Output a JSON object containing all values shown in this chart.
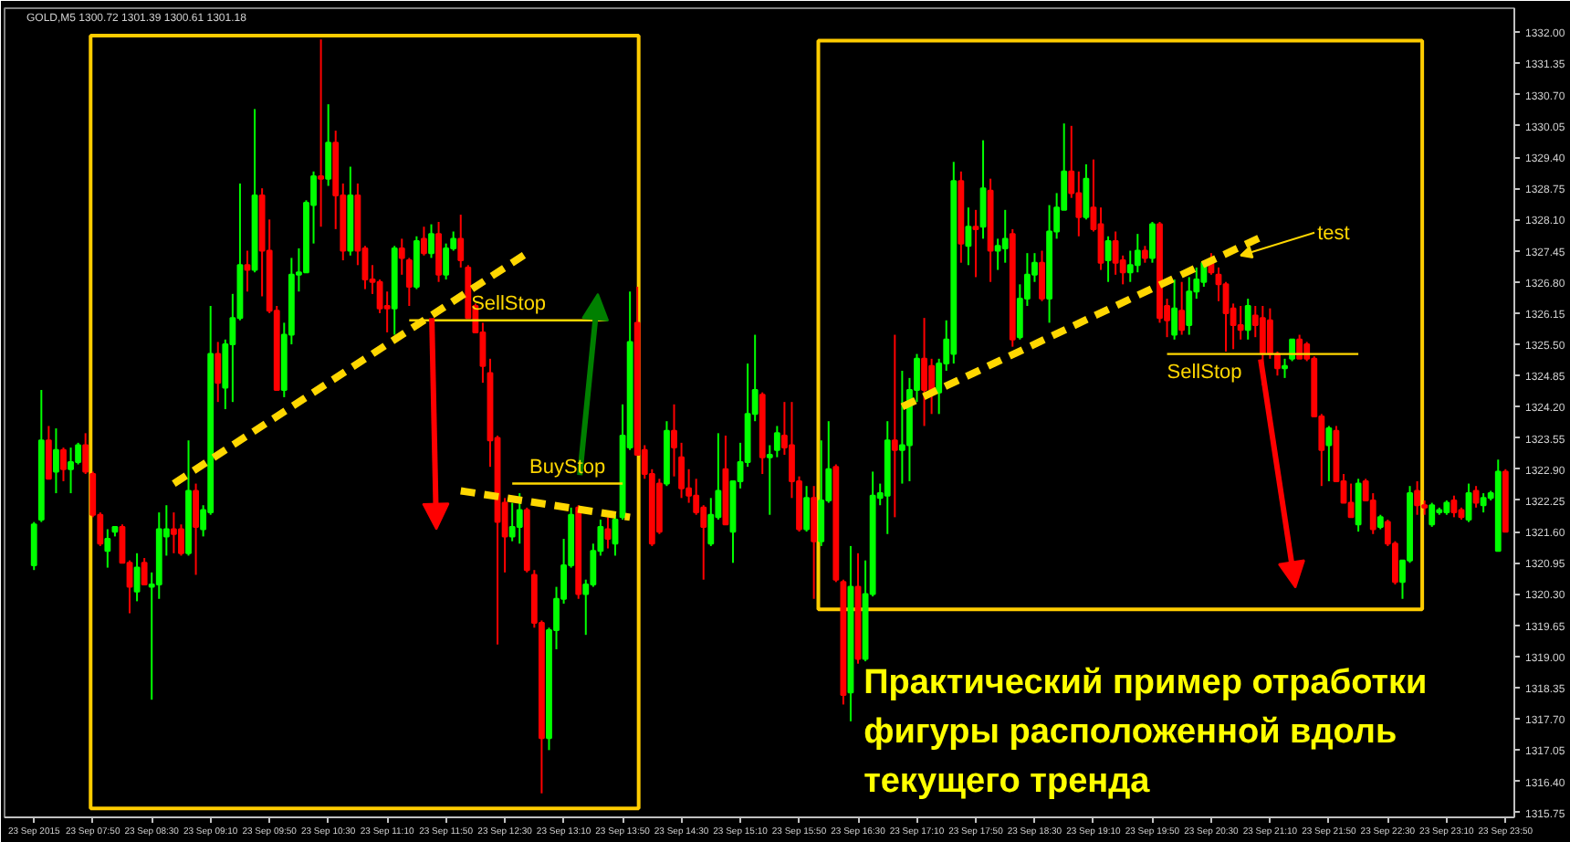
{
  "chart_data": {
    "type": "candlestick",
    "title": "GOLD,M5  1300.72 1301.39 1300.61 1301.18",
    "x": [
      "2015-09-23T07:10",
      "2015-09-23T07:15",
      "2015-09-23T07:20",
      "2015-09-23T07:25",
      "2015-09-23T07:30",
      "2015-09-23T07:35",
      "2015-09-23T07:40",
      "2015-09-23T07:45",
      "2015-09-23T07:50",
      "2015-09-23T07:55",
      "2015-09-23T08:00",
      "2015-09-23T08:05",
      "2015-09-23T08:10",
      "2015-09-23T08:15",
      "2015-09-23T08:20",
      "2015-09-23T08:25",
      "2015-09-23T08:30",
      "2015-09-23T08:35",
      "2015-09-23T08:40",
      "2015-09-23T08:45",
      "2015-09-23T08:50",
      "2015-09-23T08:55",
      "2015-09-23T09:00",
      "2015-09-23T09:05",
      "2015-09-23T09:10",
      "2015-09-23T09:15",
      "2015-09-23T09:20",
      "2015-09-23T09:25",
      "2015-09-23T09:30",
      "2015-09-23T09:35",
      "2015-09-23T09:40",
      "2015-09-23T09:45",
      "2015-09-23T09:50",
      "2015-09-23T09:55",
      "2015-09-23T10:00",
      "2015-09-23T10:05",
      "2015-09-23T10:10",
      "2015-09-23T10:15",
      "2015-09-23T10:20",
      "2015-09-23T10:25",
      "2015-09-23T10:30",
      "2015-09-23T10:35",
      "2015-09-23T10:40",
      "2015-09-23T10:45",
      "2015-09-23T10:50",
      "2015-09-23T10:55",
      "2015-09-23T11:00",
      "2015-09-23T11:05",
      "2015-09-23T11:10",
      "2015-09-23T11:15",
      "2015-09-23T11:20",
      "2015-09-23T11:25",
      "2015-09-23T11:30",
      "2015-09-23T11:35",
      "2015-09-23T11:40",
      "2015-09-23T11:45",
      "2015-09-23T11:50",
      "2015-09-23T11:55",
      "2015-09-23T12:00",
      "2015-09-23T12:05",
      "2015-09-23T12:10",
      "2015-09-23T12:15",
      "2015-09-23T12:20",
      "2015-09-23T12:25",
      "2015-09-23T12:30",
      "2015-09-23T12:35",
      "2015-09-23T12:40",
      "2015-09-23T12:45",
      "2015-09-23T12:50",
      "2015-09-23T12:55",
      "2015-09-23T13:00",
      "2015-09-23T13:05",
      "2015-09-23T13:10",
      "2015-09-23T13:15",
      "2015-09-23T13:20",
      "2015-09-23T13:25",
      "2015-09-23T13:30",
      "2015-09-23T13:35",
      "2015-09-23T13:40",
      "2015-09-23T13:45",
      "2015-09-23T13:50",
      "2015-09-23T13:55",
      "2015-09-23T14:00",
      "2015-09-23T14:05",
      "2015-09-23T14:10",
      "2015-09-23T14:15",
      "2015-09-23T14:20",
      "2015-09-23T14:25",
      "2015-09-23T14:30",
      "2015-09-23T14:35",
      "2015-09-23T14:40",
      "2015-09-23T14:45",
      "2015-09-23T14:50",
      "2015-09-23T14:55",
      "2015-09-23T15:00",
      "2015-09-23T15:05",
      "2015-09-23T15:10",
      "2015-09-23T15:15",
      "2015-09-23T15:20",
      "2015-09-23T15:25",
      "2015-09-23T15:30",
      "2015-09-23T15:35",
      "2015-09-23T15:40",
      "2015-09-23T15:45",
      "2015-09-23T15:50",
      "2015-09-23T15:55",
      "2015-09-23T16:00",
      "2015-09-23T16:05",
      "2015-09-23T16:10",
      "2015-09-23T16:15",
      "2015-09-23T16:20",
      "2015-09-23T16:25",
      "2015-09-23T16:30",
      "2015-09-23T16:35",
      "2015-09-23T16:40",
      "2015-09-23T16:45",
      "2015-09-23T16:50",
      "2015-09-23T16:55",
      "2015-09-23T17:00",
      "2015-09-23T17:05",
      "2015-09-23T17:10",
      "2015-09-23T17:15",
      "2015-09-23T17:20",
      "2015-09-23T17:25",
      "2015-09-23T17:30",
      "2015-09-23T17:35",
      "2015-09-23T17:40",
      "2015-09-23T17:45",
      "2015-09-23T17:50",
      "2015-09-23T17:55",
      "2015-09-23T18:00",
      "2015-09-23T18:05",
      "2015-09-23T18:10",
      "2015-09-23T18:15",
      "2015-09-23T18:20",
      "2015-09-23T18:25",
      "2015-09-23T18:30",
      "2015-09-23T18:35",
      "2015-09-23T18:40",
      "2015-09-23T18:45",
      "2015-09-23T18:50",
      "2015-09-23T18:55",
      "2015-09-23T19:00",
      "2015-09-23T19:05",
      "2015-09-23T19:10",
      "2015-09-23T19:15",
      "2015-09-23T19:20",
      "2015-09-23T19:25",
      "2015-09-23T19:30",
      "2015-09-23T19:35",
      "2015-09-23T19:40",
      "2015-09-23T19:45",
      "2015-09-23T19:50",
      "2015-09-23T19:55",
      "2015-09-23T20:00",
      "2015-09-23T20:05",
      "2015-09-23T20:10",
      "2015-09-23T20:15",
      "2015-09-23T20:20",
      "2015-09-23T20:25",
      "2015-09-23T20:30",
      "2015-09-23T20:35",
      "2015-09-23T20:40",
      "2015-09-23T20:45",
      "2015-09-23T20:50",
      "2015-09-23T20:55",
      "2015-09-23T21:00",
      "2015-09-23T21:05",
      "2015-09-23T21:10",
      "2015-09-23T21:15",
      "2015-09-23T21:20",
      "2015-09-23T21:25",
      "2015-09-23T21:30",
      "2015-09-23T21:35",
      "2015-09-23T21:40",
      "2015-09-23T21:45",
      "2015-09-23T21:50",
      "2015-09-23T21:55",
      "2015-09-23T22:00",
      "2015-09-23T22:05",
      "2015-09-23T22:10",
      "2015-09-23T22:15",
      "2015-09-23T22:20",
      "2015-09-23T22:25",
      "2015-09-23T22:30",
      "2015-09-23T22:35",
      "2015-09-23T22:40",
      "2015-09-23T22:45",
      "2015-09-23T22:50",
      "2015-09-23T22:55",
      "2015-09-23T23:00",
      "2015-09-23T23:05",
      "2015-09-23T23:10",
      "2015-09-23T23:15",
      "2015-09-23T23:20",
      "2015-09-23T23:25",
      "2015-09-23T23:30",
      "2015-09-23T23:35",
      "2015-09-23T23:40",
      "2015-09-23T23:45",
      "2015-09-23T23:50"
    ],
    "ohlc": [
      [
        1320.9,
        1321.8,
        1320.8,
        1321.75
      ],
      [
        1321.85,
        1324.55,
        1321.8,
        1323.5
      ],
      [
        1323.5,
        1323.8,
        1322.7,
        1322.7
      ],
      [
        1322.85,
        1323.75,
        1322.4,
        1323.3
      ],
      [
        1323.3,
        1323.35,
        1322.65,
        1322.9
      ],
      [
        1322.9,
        1323.35,
        1322.4,
        1323.05
      ],
      [
        1323.05,
        1323.45,
        1323.0,
        1323.4
      ],
      [
        1323.4,
        1323.65,
        1322.8,
        1322.85
      ],
      [
        1322.8,
        1322.85,
        1321.9,
        1321.95
      ],
      [
        1321.95,
        1322.0,
        1321.3,
        1321.35
      ],
      [
        1321.2,
        1321.65,
        1320.85,
        1321.45
      ],
      [
        1321.6,
        1321.7,
        1321.5,
        1321.7
      ],
      [
        1321.7,
        1321.75,
        1320.95,
        1320.95
      ],
      [
        1320.95,
        1321.0,
        1319.9,
        1320.45
      ],
      [
        1320.35,
        1321.15,
        1320.15,
        1320.85
      ],
      [
        1320.95,
        1321.05,
        1320.5,
        1320.5
      ],
      [
        1320.45,
        1320.75,
        1318.1,
        1320.5
      ],
      [
        1320.5,
        1322.0,
        1320.2,
        1321.65
      ],
      [
        1321.5,
        1322.15,
        1321.1,
        1321.65
      ],
      [
        1321.65,
        1322.0,
        1321.15,
        1321.55
      ],
      [
        1321.65,
        1321.75,
        1321.1,
        1321.15
      ],
      [
        1321.15,
        1323.5,
        1321.1,
        1322.45
      ],
      [
        1322.45,
        1322.6,
        1320.7,
        1321.7
      ],
      [
        1321.65,
        1322.15,
        1321.5,
        1322.05
      ],
      [
        1322.0,
        1326.3,
        1321.95,
        1325.3
      ],
      [
        1325.3,
        1325.55,
        1324.3,
        1324.7
      ],
      [
        1324.6,
        1325.6,
        1324.15,
        1325.5
      ],
      [
        1325.5,
        1326.55,
        1324.3,
        1326.05
      ],
      [
        1326.05,
        1328.85,
        1326.0,
        1327.15
      ],
      [
        1327.15,
        1327.45,
        1326.6,
        1327.05
      ],
      [
        1327.05,
        1330.4,
        1327.0,
        1328.6
      ],
      [
        1328.6,
        1328.75,
        1326.5,
        1327.45
      ],
      [
        1327.45,
        1328.1,
        1326.15,
        1326.2
      ],
      [
        1326.2,
        1326.3,
        1324.55,
        1324.55
      ],
      [
        1324.55,
        1325.95,
        1324.4,
        1325.7
      ],
      [
        1325.7,
        1327.3,
        1325.5,
        1326.95
      ],
      [
        1326.95,
        1327.5,
        1326.6,
        1327.0
      ],
      [
        1327.0,
        1328.5,
        1327.0,
        1328.45
      ],
      [
        1328.4,
        1329.1,
        1327.6,
        1329.0
      ],
      [
        1329.0,
        1331.85,
        1327.95,
        1328.95
      ],
      [
        1328.95,
        1330.5,
        1328.8,
        1329.7
      ],
      [
        1329.7,
        1329.95,
        1327.9,
        1328.6
      ],
      [
        1328.6,
        1328.85,
        1327.25,
        1327.45
      ],
      [
        1327.45,
        1329.2,
        1327.35,
        1328.6
      ],
      [
        1328.6,
        1328.85,
        1327.15,
        1327.45
      ],
      [
        1327.5,
        1327.55,
        1326.65,
        1326.85
      ],
      [
        1326.85,
        1327.15,
        1326.55,
        1326.8
      ],
      [
        1326.8,
        1326.85,
        1326.15,
        1326.25
      ],
      [
        1326.3,
        1326.6,
        1325.75,
        1326.25
      ],
      [
        1326.25,
        1327.55,
        1325.7,
        1327.5
      ],
      [
        1327.5,
        1327.7,
        1326.95,
        1327.3
      ],
      [
        1327.25,
        1327.3,
        1326.3,
        1326.7
      ],
      [
        1326.7,
        1327.75,
        1326.65,
        1327.65
      ],
      [
        1327.7,
        1327.95,
        1327.35,
        1327.4
      ],
      [
        1327.4,
        1328.0,
        1327.3,
        1327.8
      ],
      [
        1327.8,
        1328.05,
        1326.8,
        1326.95
      ],
      [
        1326.95,
        1327.6,
        1326.85,
        1327.5
      ],
      [
        1327.5,
        1327.85,
        1327.45,
        1327.7
      ],
      [
        1327.7,
        1328.2,
        1327.1,
        1327.25
      ],
      [
        1327.1,
        1327.15,
        1326.05,
        1326.05
      ],
      [
        1326.3,
        1326.35,
        1325.75,
        1325.75
      ],
      [
        1325.75,
        1325.95,
        1324.7,
        1325.05
      ],
      [
        1324.9,
        1325.2,
        1322.95,
        1323.5
      ],
      [
        1323.55,
        1323.6,
        1319.25,
        1321.8
      ],
      [
        1322.2,
        1322.3,
        1320.75,
        1321.5
      ],
      [
        1321.5,
        1322.2,
        1321.4,
        1321.7
      ],
      [
        1321.7,
        1322.4,
        1321.35,
        1322.05
      ],
      [
        1322.05,
        1322.1,
        1320.75,
        1320.8
      ],
      [
        1320.7,
        1320.8,
        1319.6,
        1319.7
      ],
      [
        1319.7,
        1319.75,
        1316.15,
        1317.3
      ],
      [
        1317.3,
        1319.6,
        1317.05,
        1319.55
      ],
      [
        1319.55,
        1320.45,
        1319.15,
        1320.2
      ],
      [
        1320.2,
        1321.45,
        1320.1,
        1320.9
      ],
      [
        1320.9,
        1322.1,
        1320.85,
        1321.95
      ],
      [
        1322.1,
        1322.15,
        1320.2,
        1320.3
      ],
      [
        1320.3,
        1320.6,
        1319.45,
        1320.5
      ],
      [
        1320.5,
        1321.35,
        1320.45,
        1321.2
      ],
      [
        1321.2,
        1321.85,
        1321.1,
        1321.7
      ],
      [
        1321.65,
        1321.9,
        1321.25,
        1321.45
      ],
      [
        1321.35,
        1321.95,
        1321.1,
        1321.85
      ],
      [
        1321.9,
        1324.25,
        1321.85,
        1323.6
      ],
      [
        1323.35,
        1326.6,
        1323.3,
        1325.55
      ],
      [
        1325.95,
        1326.7,
        1323.2,
        1323.2
      ],
      [
        1323.3,
        1323.4,
        1322.7,
        1322.8
      ],
      [
        1322.8,
        1322.9,
        1321.3,
        1321.35
      ],
      [
        1322.6,
        1322.7,
        1321.55,
        1321.6
      ],
      [
        1322.6,
        1323.9,
        1322.55,
        1323.7
      ],
      [
        1323.7,
        1324.25,
        1322.75,
        1323.35
      ],
      [
        1323.15,
        1323.45,
        1322.3,
        1322.5
      ],
      [
        1322.5,
        1322.9,
        1322.2,
        1322.35
      ],
      [
        1322.35,
        1322.7,
        1321.95,
        1322.0
      ],
      [
        1322.1,
        1322.15,
        1320.6,
        1321.7
      ],
      [
        1321.35,
        1322.3,
        1321.3,
        1321.95
      ],
      [
        1321.9,
        1323.65,
        1321.85,
        1322.45
      ],
      [
        1322.9,
        1323.6,
        1321.75,
        1321.75
      ],
      [
        1321.6,
        1322.65,
        1320.95,
        1322.65
      ],
      [
        1322.65,
        1323.45,
        1322.5,
        1323.05
      ],
      [
        1323.05,
        1325.1,
        1322.95,
        1324.05
      ],
      [
        1324.05,
        1325.7,
        1323.9,
        1324.55
      ],
      [
        1324.45,
        1324.5,
        1322.8,
        1323.15
      ],
      [
        1323.15,
        1323.4,
        1321.95,
        1323.2
      ],
      [
        1323.3,
        1323.8,
        1323.15,
        1323.65
      ],
      [
        1323.6,
        1324.3,
        1323.2,
        1323.35
      ],
      [
        1323.4,
        1324.3,
        1322.3,
        1322.65
      ],
      [
        1322.65,
        1322.75,
        1321.6,
        1321.65
      ],
      [
        1321.65,
        1322.55,
        1321.6,
        1322.3
      ],
      [
        1322.3,
        1322.55,
        1320.2,
        1321.4
      ],
      [
        1321.4,
        1323.5,
        1321.3,
        1322.25
      ],
      [
        1322.25,
        1323.9,
        1322.2,
        1322.9
      ],
      [
        1322.95,
        1323.0,
        1320.55,
        1320.6
      ],
      [
        1320.55,
        1320.6,
        1318.0,
        1318.2
      ],
      [
        1318.25,
        1321.3,
        1317.65,
        1320.45
      ],
      [
        1320.45,
        1321.15,
        1318.85,
        1318.95
      ],
      [
        1318.95,
        1321.0,
        1318.9,
        1320.3
      ],
      [
        1320.3,
        1322.85,
        1320.25,
        1322.35
      ],
      [
        1322.3,
        1322.6,
        1322.15,
        1322.4
      ],
      [
        1322.35,
        1323.9,
        1321.55,
        1323.5
      ],
      [
        1323.5,
        1325.7,
        1321.9,
        1323.3
      ],
      [
        1323.3,
        1324.95,
        1322.6,
        1323.4
      ],
      [
        1323.4,
        1324.8,
        1322.65,
        1324.55
      ],
      [
        1324.55,
        1325.3,
        1324.3,
        1325.2
      ],
      [
        1325.2,
        1326.05,
        1323.8,
        1324.55
      ],
      [
        1325.05,
        1325.2,
        1324.05,
        1324.55
      ],
      [
        1324.5,
        1325.2,
        1324.05,
        1325.1
      ],
      [
        1325.1,
        1326.0,
        1324.95,
        1325.6
      ],
      [
        1325.3,
        1329.3,
        1325.1,
        1328.9
      ],
      [
        1328.9,
        1329.1,
        1327.2,
        1327.6
      ],
      [
        1327.55,
        1328.35,
        1327.15,
        1327.95
      ],
      [
        1327.95,
        1328.3,
        1326.9,
        1327.9
      ],
      [
        1327.95,
        1329.75,
        1327.7,
        1328.75
      ],
      [
        1328.7,
        1328.95,
        1326.8,
        1327.45
      ],
      [
        1327.45,
        1327.7,
        1327.05,
        1327.55
      ],
      [
        1327.5,
        1328.3,
        1327.2,
        1327.7
      ],
      [
        1327.8,
        1327.9,
        1325.45,
        1325.6
      ],
      [
        1325.65,
        1326.75,
        1325.6,
        1326.45
      ],
      [
        1326.45,
        1327.4,
        1326.3,
        1326.95
      ],
      [
        1326.95,
        1327.4,
        1326.8,
        1327.2
      ],
      [
        1327.2,
        1327.45,
        1326.4,
        1326.45
      ],
      [
        1326.45,
        1328.4,
        1325.95,
        1327.85
      ],
      [
        1327.85,
        1328.65,
        1327.7,
        1328.35
      ],
      [
        1328.3,
        1330.1,
        1328.3,
        1329.1
      ],
      [
        1329.1,
        1330.05,
        1328.55,
        1328.65
      ],
      [
        1328.65,
        1329.1,
        1327.75,
        1328.15
      ],
      [
        1328.15,
        1329.25,
        1328.1,
        1328.95
      ],
      [
        1328.35,
        1329.35,
        1327.85,
        1327.9
      ],
      [
        1328.0,
        1328.35,
        1327.05,
        1327.2
      ],
      [
        1327.25,
        1327.75,
        1326.8,
        1327.65
      ],
      [
        1327.65,
        1327.85,
        1326.95,
        1327.2
      ],
      [
        1327.25,
        1327.35,
        1326.75,
        1327.0
      ],
      [
        1327.0,
        1327.45,
        1326.8,
        1327.15
      ],
      [
        1327.15,
        1327.8,
        1327.0,
        1327.45
      ],
      [
        1327.45,
        1327.55,
        1327.2,
        1327.3
      ],
      [
        1327.3,
        1328.05,
        1327.2,
        1328.0
      ],
      [
        1328.0,
        1328.05,
        1325.95,
        1326.05
      ],
      [
        1326.3,
        1326.45,
        1325.65,
        1326.0
      ],
      [
        1325.7,
        1326.85,
        1325.6,
        1326.25
      ],
      [
        1326.2,
        1326.8,
        1325.7,
        1325.8
      ],
      [
        1325.9,
        1326.9,
        1325.7,
        1326.6
      ],
      [
        1326.6,
        1327.1,
        1326.45,
        1326.85
      ],
      [
        1326.8,
        1327.25,
        1326.7,
        1327.2
      ],
      [
        1327.2,
        1327.4,
        1326.95,
        1327.0
      ],
      [
        1326.95,
        1327.1,
        1326.4,
        1326.75
      ],
      [
        1326.75,
        1326.8,
        1325.35,
        1326.15
      ],
      [
        1326.25,
        1326.35,
        1325.4,
        1325.9
      ],
      [
        1325.9,
        1326.3,
        1325.6,
        1325.8
      ],
      [
        1325.8,
        1326.45,
        1325.6,
        1326.3
      ],
      [
        1326.1,
        1326.3,
        1325.65,
        1325.9
      ],
      [
        1326.05,
        1326.3,
        1324.65,
        1325.3
      ],
      [
        1326.0,
        1326.25,
        1325.2,
        1325.3
      ],
      [
        1325.3,
        1325.35,
        1324.85,
        1325.0
      ],
      [
        1325.0,
        1325.2,
        1324.8,
        1325.05
      ],
      [
        1325.2,
        1325.6,
        1325.15,
        1325.6
      ],
      [
        1325.6,
        1325.7,
        1325.2,
        1325.2
      ],
      [
        1325.5,
        1325.55,
        1325.15,
        1325.2
      ],
      [
        1325.2,
        1325.25,
        1324.0,
        1324.0
      ],
      [
        1324.0,
        1324.05,
        1322.55,
        1323.3
      ],
      [
        1323.4,
        1323.8,
        1322.65,
        1323.75
      ],
      [
        1323.7,
        1323.8,
        1322.65,
        1322.65
      ],
      [
        1322.65,
        1322.8,
        1322.2,
        1322.2
      ],
      [
        1322.2,
        1322.6,
        1321.9,
        1321.9
      ],
      [
        1321.75,
        1322.7,
        1321.6,
        1322.6
      ],
      [
        1322.65,
        1322.7,
        1322.25,
        1322.25
      ],
      [
        1322.25,
        1322.4,
        1321.55,
        1321.65
      ],
      [
        1321.7,
        1321.95,
        1321.65,
        1321.9
      ],
      [
        1321.8,
        1321.85,
        1321.3,
        1321.35
      ],
      [
        1321.35,
        1321.4,
        1320.5,
        1320.55
      ],
      [
        1320.55,
        1321.0,
        1320.2,
        1321.0
      ],
      [
        1321.0,
        1322.55,
        1320.95,
        1322.4
      ],
      [
        1322.45,
        1322.65,
        1321.95,
        1322.15
      ],
      [
        1322.15,
        1322.25,
        1321.95,
        1322.1
      ],
      [
        1321.75,
        1322.2,
        1321.7,
        1322.15
      ],
      [
        1322.0,
        1322.1,
        1321.95,
        1322.05
      ],
      [
        1322.0,
        1322.25,
        1321.95,
        1322.2
      ],
      [
        1322.25,
        1322.35,
        1321.9,
        1322.0
      ],
      [
        1322.05,
        1322.1,
        1321.85,
        1321.9
      ],
      [
        1321.85,
        1322.6,
        1321.8,
        1322.4
      ],
      [
        1322.45,
        1322.55,
        1322.1,
        1322.2
      ],
      [
        1322.15,
        1322.4,
        1322.0,
        1322.3
      ],
      [
        1322.3,
        1322.45,
        1322.25,
        1322.4
      ],
      [
        1321.2,
        1323.1,
        1321.2,
        1322.85
      ],
      [
        1322.85,
        1322.9,
        1321.6,
        1321.6
      ]
    ],
    "colors": [
      "#00ff00",
      "#00ff00",
      "#ff0000",
      "#00ff00",
      "#ff0000",
      "#00ff00",
      "#00ff00",
      "#ff0000",
      "#ff0000",
      "#ff0000",
      "#00ff00",
      "#00ff00",
      "#ff0000",
      "#ff0000",
      "#00ff00",
      "#ff0000",
      "#00ff00",
      "#00ff00",
      "#00ff00",
      "#ff0000",
      "#ff0000",
      "#00ff00",
      "#ff0000",
      "#00ff00",
      "#00ff00",
      "#ff0000",
      "#00ff00",
      "#00ff00",
      "#00ff00",
      "#ff0000",
      "#00ff00",
      "#ff0000",
      "#ff0000",
      "#ff0000",
      "#00ff00",
      "#00ff00",
      "#00ff00",
      "#00ff00",
      "#00ff00",
      "#ff0000",
      "#00ff00",
      "#ff0000",
      "#ff0000",
      "#00ff00",
      "#ff0000",
      "#ff0000",
      "#ff0000",
      "#ff0000",
      "#ff0000",
      "#00ff00",
      "#ff0000",
      "#ff0000",
      "#00ff00",
      "#ff0000",
      "#00ff00",
      "#ff0000",
      "#00ff00",
      "#00ff00",
      "#ff0000",
      "#ff0000",
      "#ff0000",
      "#ff0000",
      "#ff0000",
      "#ff0000",
      "#ff0000",
      "#00ff00",
      "#00ff00",
      "#ff0000",
      "#ff0000",
      "#ff0000",
      "#00ff00",
      "#00ff00",
      "#00ff00",
      "#00ff00",
      "#ff0000",
      "#00ff00",
      "#00ff00",
      "#00ff00",
      "#ff0000",
      "#00ff00",
      "#00ff00",
      "#00ff00",
      "#ff0000",
      "#ff0000",
      "#ff0000",
      "#ff0000",
      "#00ff00",
      "#ff0000",
      "#ff0000",
      "#ff0000",
      "#ff0000",
      "#ff0000",
      "#00ff00",
      "#00ff00",
      "#ff0000",
      "#00ff00",
      "#00ff00",
      "#00ff00",
      "#00ff00",
      "#ff0000",
      "#00ff00",
      "#00ff00",
      "#ff0000",
      "#ff0000",
      "#ff0000",
      "#00ff00",
      "#ff0000",
      "#00ff00",
      "#00ff00",
      "#ff0000",
      "#ff0000",
      "#00ff00",
      "#ff0000",
      "#00ff00",
      "#00ff00",
      "#00ff00",
      "#00ff00",
      "#ff0000",
      "#00ff00",
      "#00ff00",
      "#00ff00",
      "#ff0000",
      "#ff0000",
      "#00ff00",
      "#00ff00",
      "#00ff00",
      "#ff0000",
      "#00ff00",
      "#ff0000",
      "#00ff00",
      "#ff0000",
      "#00ff00",
      "#00ff00",
      "#ff0000",
      "#00ff00",
      "#00ff00",
      "#00ff00",
      "#ff0000",
      "#00ff00",
      "#00ff00",
      "#00ff00",
      "#ff0000",
      "#ff0000",
      "#00ff00",
      "#ff0000",
      "#ff0000",
      "#00ff00",
      "#ff0000",
      "#ff0000",
      "#00ff00",
      "#00ff00",
      "#ff0000",
      "#00ff00",
      "#ff0000",
      "#ff0000",
      "#00ff00",
      "#ff0000",
      "#00ff00",
      "#00ff00",
      "#00ff00",
      "#ff0000",
      "#ff0000",
      "#ff0000",
      "#ff0000",
      "#ff0000",
      "#00ff00",
      "#ff0000",
      "#ff0000",
      "#ff0000",
      "#ff0000",
      "#00ff00",
      "#00ff00",
      "#ff0000",
      "#ff0000",
      "#ff0000",
      "#ff0000",
      "#00ff00",
      "#ff0000",
      "#ff0000",
      "#ff0000",
      "#00ff00",
      "#ff0000",
      "#ff0000",
      "#00ff00",
      "#ff0000",
      "#ff0000",
      "#00ff00",
      "#00ff00",
      "#ff0000",
      "#ff0000",
      "#00ff00",
      "#00ff00",
      "#00ff00",
      "#ff0000",
      "#ff0000",
      "#00ff00",
      "#ff0000",
      "#00ff00",
      "#00ff00",
      "#00ff00",
      "#ff0000"
    ],
    "series": [
      {
        "type": "line",
        "color": "#ffd700",
        "line_style": "dashed",
        "x": [
          "2015-09-23T08:45",
          "2015-09-23T12:45"
        ],
        "values": [
          1322.6,
          1327.4
        ]
      },
      {
        "type": "line",
        "color": "#ffd700",
        "line_style": "dashed",
        "x": [
          "2015-09-23T12:00",
          "2015-09-23T13:55"
        ],
        "values": [
          1322.45,
          1321.9
        ]
      },
      {
        "type": "line",
        "color": "#ffd700",
        "line_style": "dashed",
        "x": [
          "2015-09-23T17:00",
          "2015-09-23T21:05"
        ],
        "values": [
          1324.2,
          1327.75
        ]
      },
      {
        "type": "line",
        "name": "SellStop",
        "color": "#ffd700",
        "line_style": "solid",
        "x": [
          "2015-09-23T11:25",
          "2015-09-23T13:40"
        ],
        "values": [
          1326.0,
          1326.0
        ]
      },
      {
        "type": "line",
        "name": "BuyStop",
        "color": "#ffd700",
        "line_style": "solid",
        "x": [
          "2015-09-23T12:35",
          "2015-09-23T13:50"
        ],
        "values": [
          1322.6,
          1322.6
        ]
      },
      {
        "type": "line",
        "name": "SellStop",
        "color": "#ffd700",
        "line_style": "solid",
        "x": [
          "2015-09-23T20:00",
          "2015-09-23T22:10"
        ],
        "values": [
          1325.3,
          1325.3
        ]
      }
    ],
    "annotations": [
      {
        "text": "test",
        "x": "2015-09-23T20:50",
        "y": 1327.35
      },
      "Практический пример отработки\nфигуры расположенной вдоль\nтекущего тренда"
    ],
    "xlim": [
      "2015-09-23T06:50",
      "2015-09-23T23:56"
    ],
    "ylim": [
      1315.65,
      1332.5
    ],
    "xticks": [
      {
        "value": "2015-09-23T07:10",
        "label": "23 Sep 2015"
      },
      {
        "value": "2015-09-23T07:50",
        "label": "23 Sep 07:50"
      },
      {
        "value": "2015-09-23T08:30",
        "label": "23 Sep 08:30"
      },
      {
        "value": "2015-09-23T09:10",
        "label": "23 Sep 09:10"
      },
      {
        "value": "2015-09-23T09:50",
        "label": "23 Sep 09:50"
      },
      {
        "value": "2015-09-23T10:30",
        "label": "23 Sep 10:30"
      },
      {
        "value": "2015-09-23T11:10",
        "label": "23 Sep 11:10"
      },
      {
        "value": "2015-09-23T11:50",
        "label": "23 Sep 11:50"
      },
      {
        "value": "2015-09-23T12:30",
        "label": "23 Sep 12:30"
      },
      {
        "value": "2015-09-23T13:10",
        "label": "23 Sep 13:10"
      },
      {
        "value": "2015-09-23T13:50",
        "label": "23 Sep 13:50"
      },
      {
        "value": "2015-09-23T14:30",
        "label": "23 Sep 14:30"
      },
      {
        "value": "2015-09-23T15:10",
        "label": "23 Sep 15:10"
      },
      {
        "value": "2015-09-23T15:50",
        "label": "23 Sep 15:50"
      },
      {
        "value": "2015-09-23T16:30",
        "label": "23 Sep 16:30"
      },
      {
        "value": "2015-09-23T17:10",
        "label": "23 Sep 17:10"
      },
      {
        "value": "2015-09-23T17:50",
        "label": "23 Sep 17:50"
      },
      {
        "value": "2015-09-23T18:30",
        "label": "23 Sep 18:30"
      },
      {
        "value": "2015-09-23T19:10",
        "label": "23 Sep 19:10"
      },
      {
        "value": "2015-09-23T19:50",
        "label": "23 Sep 19:50"
      },
      {
        "value": "2015-09-23T20:30",
        "label": "23 Sep 20:30"
      },
      {
        "value": "2015-09-23T21:10",
        "label": "23 Sep 21:10"
      },
      {
        "value": "2015-09-23T21:50",
        "label": "23 Sep 21:50"
      },
      {
        "value": "2015-09-23T22:30",
        "label": "23 Sep 22:30"
      },
      {
        "value": "2015-09-23T23:10",
        "label": "23 Sep 23:10"
      },
      {
        "value": "2015-09-23T23:50",
        "label": "23 Sep 23:50"
      }
    ],
    "yticks": [
      {
        "value": 1332.0,
        "label": "1332.00"
      },
      {
        "value": 1331.35,
        "label": "1331.35"
      },
      {
        "value": 1330.7,
        "label": "1330.70"
      },
      {
        "value": 1330.05,
        "label": "1330.05"
      },
      {
        "value": 1329.4,
        "label": "1329.40"
      },
      {
        "value": 1328.75,
        "label": "1328.75"
      },
      {
        "value": 1328.1,
        "label": "1328.10"
      },
      {
        "value": 1327.45,
        "label": "1327.45"
      },
      {
        "value": 1326.8,
        "label": "1326.80"
      },
      {
        "value": 1326.15,
        "label": "1326.15"
      },
      {
        "value": 1325.5,
        "label": "1325.50"
      },
      {
        "value": 1324.85,
        "label": "1324.85"
      },
      {
        "value": 1324.2,
        "label": "1324.20"
      },
      {
        "value": 1323.55,
        "label": "1323.55"
      },
      {
        "value": 1322.9,
        "label": "1322.90"
      },
      {
        "value": 1322.25,
        "label": "1322.25"
      },
      {
        "value": 1321.6,
        "label": "1321.60"
      },
      {
        "value": 1320.95,
        "label": "1320.95"
      },
      {
        "value": 1320.3,
        "label": "1320.30"
      },
      {
        "value": 1319.65,
        "label": "1319.65"
      },
      {
        "value": 1319.0,
        "label": "1319.00"
      },
      {
        "value": 1318.35,
        "label": "1318.35"
      },
      {
        "value": 1317.7,
        "label": "1317.70"
      },
      {
        "value": 1317.05,
        "label": "1317.05"
      },
      {
        "value": 1316.4,
        "label": "1316.40"
      },
      {
        "value": 1315.75,
        "label": "1315.75"
      }
    ],
    "grid": false
  }
}
